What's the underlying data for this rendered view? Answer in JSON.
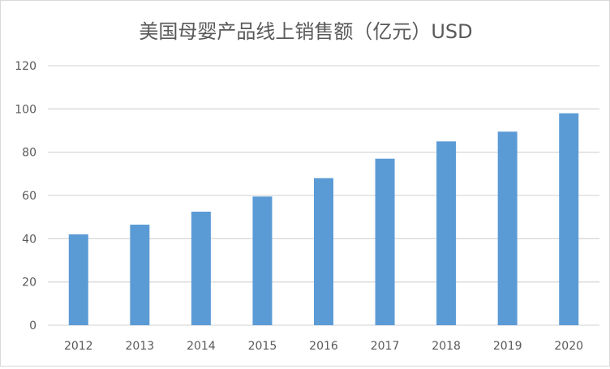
{
  "chart_data": {
    "type": "bar",
    "title": "美国母婴产品线上销售额（亿元）USD",
    "xlabel": "",
    "ylabel": "",
    "categories": [
      "2012",
      "2013",
      "2014",
      "2015",
      "2016",
      "2017",
      "2018",
      "2019",
      "2020"
    ],
    "values": [
      42,
      46.5,
      52.5,
      59.5,
      68,
      77,
      85,
      89.5,
      98
    ],
    "ylim": [
      0,
      120
    ],
    "yticks": [
      "0",
      "20",
      "40",
      "60",
      "80",
      "100",
      "120"
    ],
    "grid": true,
    "legend": "none",
    "bar_color": "#5B9BD5",
    "grid_color": "#D9D9D9"
  }
}
